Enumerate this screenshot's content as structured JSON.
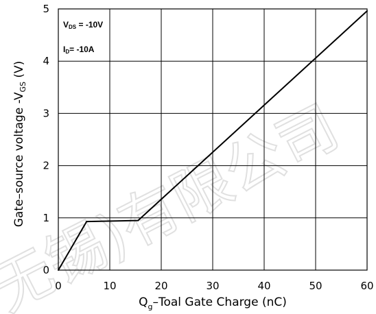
{
  "chart_data": {
    "type": "line",
    "x": [
      0,
      5.5,
      15.5,
      60
    ],
    "series": [
      {
        "values": [
          0,
          0.93,
          0.95,
          4.96
        ]
      }
    ],
    "xlabel_parts": {
      "q": "Q",
      "sub": "g",
      "rest": "–Toal Gate Charge  (nC)"
    },
    "ylabel_parts": {
      "main": "Gate–source voltage -V",
      "sub": "GS",
      "unit": " (V)"
    },
    "xlim": [
      0,
      60
    ],
    "ylim": [
      0,
      5
    ],
    "xticks": [
      "0",
      "10",
      "20",
      "30",
      "40",
      "50",
      "60"
    ],
    "yticks": [
      "0",
      "1",
      "2",
      "3",
      "4",
      "5"
    ],
    "grid": true,
    "annotations": [
      {
        "prefix": "V",
        "sub": "DS",
        "text": " = -10V"
      },
      {
        "prefix": "I",
        "sub": "D",
        "text": "= -10A"
      }
    ],
    "watermark": "无锡)有限公司",
    "colors": {
      "line": "#000000",
      "grid": "#000000",
      "watermark": "#c8c8c8"
    }
  }
}
